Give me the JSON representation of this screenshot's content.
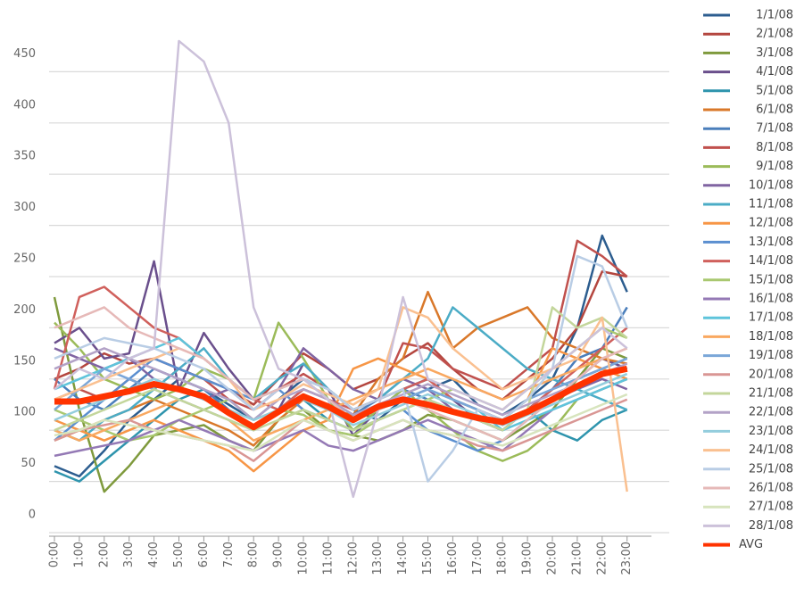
{
  "chart_data": {
    "type": "line",
    "categories": [
      "0:00",
      "1:00",
      "2:00",
      "3:00",
      "4:00",
      "5:00",
      "6:00",
      "7:00",
      "8:00",
      "9:00",
      "10:00",
      "11:00",
      "12:00",
      "13:00",
      "14:00",
      "15:00",
      "16:00",
      "17:00",
      "18:00",
      "19:00",
      "20:00",
      "21:00",
      "22:00",
      "23:00"
    ],
    "ylim": [
      0,
      500
    ],
    "yticks": [
      0,
      50,
      100,
      150,
      200,
      250,
      300,
      350,
      400,
      450
    ],
    "grid": true,
    "series": [
      {
        "name": "1/1/08",
        "color": "#2c5d8f",
        "values": [
          65,
          55,
          80,
          110,
          130,
          150,
          140,
          125,
          110,
          130,
          150,
          140,
          120,
          110,
          130,
          140,
          150,
          125,
          115,
          130,
          150,
          200,
          290,
          235
        ]
      },
      {
        "name": "2/1/08",
        "color": "#b4463f",
        "values": [
          150,
          160,
          175,
          165,
          170,
          160,
          150,
          140,
          125,
          150,
          175,
          160,
          140,
          150,
          170,
          185,
          160,
          140,
          130,
          150,
          170,
          200,
          255,
          250
        ]
      },
      {
        "name": "3/1/08",
        "color": "#7f9a3d",
        "values": [
          230,
          120,
          40,
          65,
          95,
          100,
          105,
          90,
          80,
          110,
          120,
          100,
          95,
          90,
          100,
          115,
          110,
          100,
          90,
          105,
          120,
          150,
          180,
          170
        ]
      },
      {
        "name": "4/1/08",
        "color": "#6a4f8c",
        "values": [
          185,
          200,
          170,
          175,
          265,
          140,
          195,
          160,
          130,
          120,
          165,
          140,
          95,
          120,
          140,
          150,
          130,
          110,
          100,
          120,
          140,
          150,
          170,
          160
        ]
      },
      {
        "name": "5/1/08",
        "color": "#2e94ad",
        "values": [
          60,
          50,
          70,
          90,
          110,
          130,
          140,
          120,
          100,
          120,
          130,
          110,
          100,
          120,
          140,
          150,
          130,
          120,
          110,
          120,
          100,
          90,
          110,
          120
        ]
      },
      {
        "name": "6/1/08",
        "color": "#d9782a",
        "values": [
          90,
          100,
          110,
          120,
          130,
          120,
          110,
          100,
          85,
          110,
          130,
          120,
          115,
          150,
          170,
          235,
          180,
          200,
          210,
          220,
          190,
          180,
          170,
          165
        ]
      },
      {
        "name": "7/1/08",
        "color": "#4a7ebb",
        "values": [
          150,
          130,
          120,
          140,
          160,
          150,
          140,
          120,
          100,
          120,
          140,
          130,
          115,
          130,
          140,
          130,
          120,
          110,
          100,
          120,
          140,
          170,
          180,
          220
        ]
      },
      {
        "name": "8/1/08",
        "color": "#c0504d",
        "values": [
          130,
          140,
          130,
          150,
          140,
          160,
          150,
          130,
          120,
          140,
          155,
          140,
          120,
          130,
          185,
          180,
          160,
          150,
          140,
          160,
          180,
          285,
          270,
          250
        ]
      },
      {
        "name": "9/1/08",
        "color": "#9bbb59",
        "values": [
          205,
          180,
          150,
          140,
          130,
          140,
          160,
          150,
          130,
          205,
          170,
          130,
          100,
          120,
          140,
          120,
          100,
          80,
          70,
          80,
          100,
          130,
          140,
          150
        ]
      },
      {
        "name": "10/1/08",
        "color": "#8064a2",
        "values": [
          180,
          170,
          160,
          170,
          150,
          140,
          130,
          140,
          120,
          140,
          180,
          160,
          140,
          130,
          150,
          140,
          120,
          110,
          100,
          120,
          130,
          140,
          150,
          140
        ]
      },
      {
        "name": "11/1/08",
        "color": "#4bacc6",
        "values": [
          100,
          90,
          110,
          120,
          140,
          160,
          180,
          150,
          130,
          150,
          165,
          140,
          120,
          130,
          150,
          170,
          220,
          200,
          180,
          160,
          150,
          140,
          130,
          120
        ]
      },
      {
        "name": "12/1/08",
        "color": "#f79646",
        "values": [
          110,
          100,
          90,
          100,
          110,
          100,
          90,
          80,
          60,
          80,
          100,
          110,
          160,
          170,
          160,
          150,
          130,
          120,
          110,
          130,
          180,
          170,
          160,
          150
        ]
      },
      {
        "name": "13/1/08",
        "color": "#5b8fd0",
        "values": [
          90,
          110,
          130,
          150,
          170,
          160,
          150,
          140,
          130,
          140,
          120,
          110,
          100,
          110,
          120,
          100,
          90,
          80,
          90,
          110,
          130,
          150,
          160,
          170
        ]
      },
      {
        "name": "14/1/08",
        "color": "#d0605c",
        "values": [
          140,
          230,
          240,
          220,
          200,
          190,
          170,
          150,
          130,
          120,
          140,
          130,
          120,
          130,
          140,
          150,
          130,
          120,
          110,
          120,
          140,
          160,
          180,
          200
        ]
      },
      {
        "name": "15/1/08",
        "color": "#a9c870",
        "values": [
          120,
          110,
          100,
          90,
          95,
          110,
          120,
          130,
          110,
          120,
          115,
          100,
          95,
          110,
          120,
          130,
          140,
          130,
          120,
          140,
          160,
          180,
          200,
          190
        ]
      },
      {
        "name": "16/1/08",
        "color": "#9479b5",
        "values": [
          75,
          80,
          85,
          90,
          100,
          110,
          100,
          90,
          80,
          90,
          100,
          85,
          80,
          90,
          100,
          110,
          100,
          90,
          80,
          100,
          120,
          130,
          140,
          150
        ]
      },
      {
        "name": "17/1/08",
        "color": "#5ec4db",
        "values": [
          140,
          150,
          160,
          170,
          180,
          190,
          170,
          150,
          130,
          140,
          150,
          130,
          110,
          120,
          130,
          140,
          130,
          120,
          100,
          110,
          120,
          130,
          140,
          150
        ]
      },
      {
        "name": "18/1/08",
        "color": "#f9a860",
        "values": [
          100,
          90,
          100,
          110,
          120,
          130,
          120,
          110,
          90,
          100,
          110,
          120,
          130,
          140,
          150,
          160,
          150,
          140,
          130,
          140,
          150,
          160,
          170,
          180
        ]
      },
      {
        "name": "19/1/08",
        "color": "#7aa6d8",
        "values": [
          120,
          140,
          160,
          150,
          140,
          130,
          120,
          110,
          100,
          120,
          130,
          120,
          110,
          120,
          130,
          140,
          130,
          120,
          110,
          130,
          140,
          150,
          160,
          170
        ]
      },
      {
        "name": "20/1/08",
        "color": "#d99694",
        "values": [
          90,
          100,
          105,
          110,
          100,
          95,
          90,
          85,
          70,
          90,
          110,
          100,
          90,
          100,
          110,
          100,
          95,
          85,
          80,
          90,
          100,
          110,
          120,
          130
        ]
      },
      {
        "name": "21/1/08",
        "color": "#c3d69b",
        "values": [
          100,
          110,
          120,
          130,
          140,
          130,
          120,
          110,
          100,
          110,
          120,
          110,
          100,
          110,
          120,
          130,
          120,
          110,
          100,
          120,
          220,
          200,
          210,
          190
        ]
      },
      {
        "name": "22/1/08",
        "color": "#b3a2c7",
        "values": [
          160,
          170,
          180,
          170,
          160,
          150,
          140,
          130,
          110,
          130,
          140,
          130,
          115,
          125,
          135,
          145,
          135,
          125,
          115,
          125,
          135,
          145,
          155,
          165
        ]
      },
      {
        "name": "23/1/08",
        "color": "#93cddd",
        "values": [
          110,
          120,
          130,
          140,
          150,
          140,
          130,
          120,
          110,
          120,
          130,
          120,
          105,
          115,
          125,
          135,
          125,
          115,
          105,
          115,
          125,
          135,
          145,
          155
        ]
      },
      {
        "name": "24/1/08",
        "color": "#fac090",
        "values": [
          130,
          140,
          150,
          160,
          170,
          180,
          170,
          150,
          120,
          130,
          145,
          135,
          125,
          140,
          220,
          210,
          180,
          160,
          140,
          150,
          160,
          170,
          210,
          40
        ]
      },
      {
        "name": "25/1/08",
        "color": "#b9cde5",
        "values": [
          170,
          180,
          190,
          185,
          180,
          170,
          160,
          140,
          120,
          140,
          150,
          140,
          120,
          130,
          140,
          50,
          80,
          120,
          110,
          130,
          160,
          270,
          260,
          200
        ]
      },
      {
        "name": "26/1/08",
        "color": "#e6b9b8",
        "values": [
          200,
          210,
          220,
          200,
          190,
          180,
          170,
          150,
          130,
          140,
          150,
          130,
          110,
          120,
          130,
          120,
          110,
          100,
          90,
          110,
          130,
          150,
          170,
          180
        ]
      },
      {
        "name": "27/1/08",
        "color": "#d7e4bd",
        "values": [
          95,
          100,
          110,
          105,
          100,
          95,
          90,
          85,
          80,
          95,
          110,
          100,
          90,
          100,
          110,
          100,
          95,
          90,
          85,
          95,
          105,
          115,
          125,
          135
        ]
      },
      {
        "name": "28/1/08",
        "color": "#ccc1da",
        "values": [
          140,
          160,
          150,
          170,
          180,
          480,
          460,
          400,
          220,
          160,
          150,
          130,
          35,
          120,
          230,
          150,
          140,
          130,
          120,
          140,
          160,
          180,
          200,
          180
        ]
      },
      {
        "name": "AVG",
        "color": "#ff3300",
        "width": 7,
        "values": [
          128,
          128,
          133,
          138,
          145,
          140,
          133,
          117,
          103,
          118,
          133,
          123,
          110,
          123,
          130,
          125,
          118,
          112,
          108,
          118,
          130,
          143,
          155,
          160
        ]
      }
    ]
  }
}
